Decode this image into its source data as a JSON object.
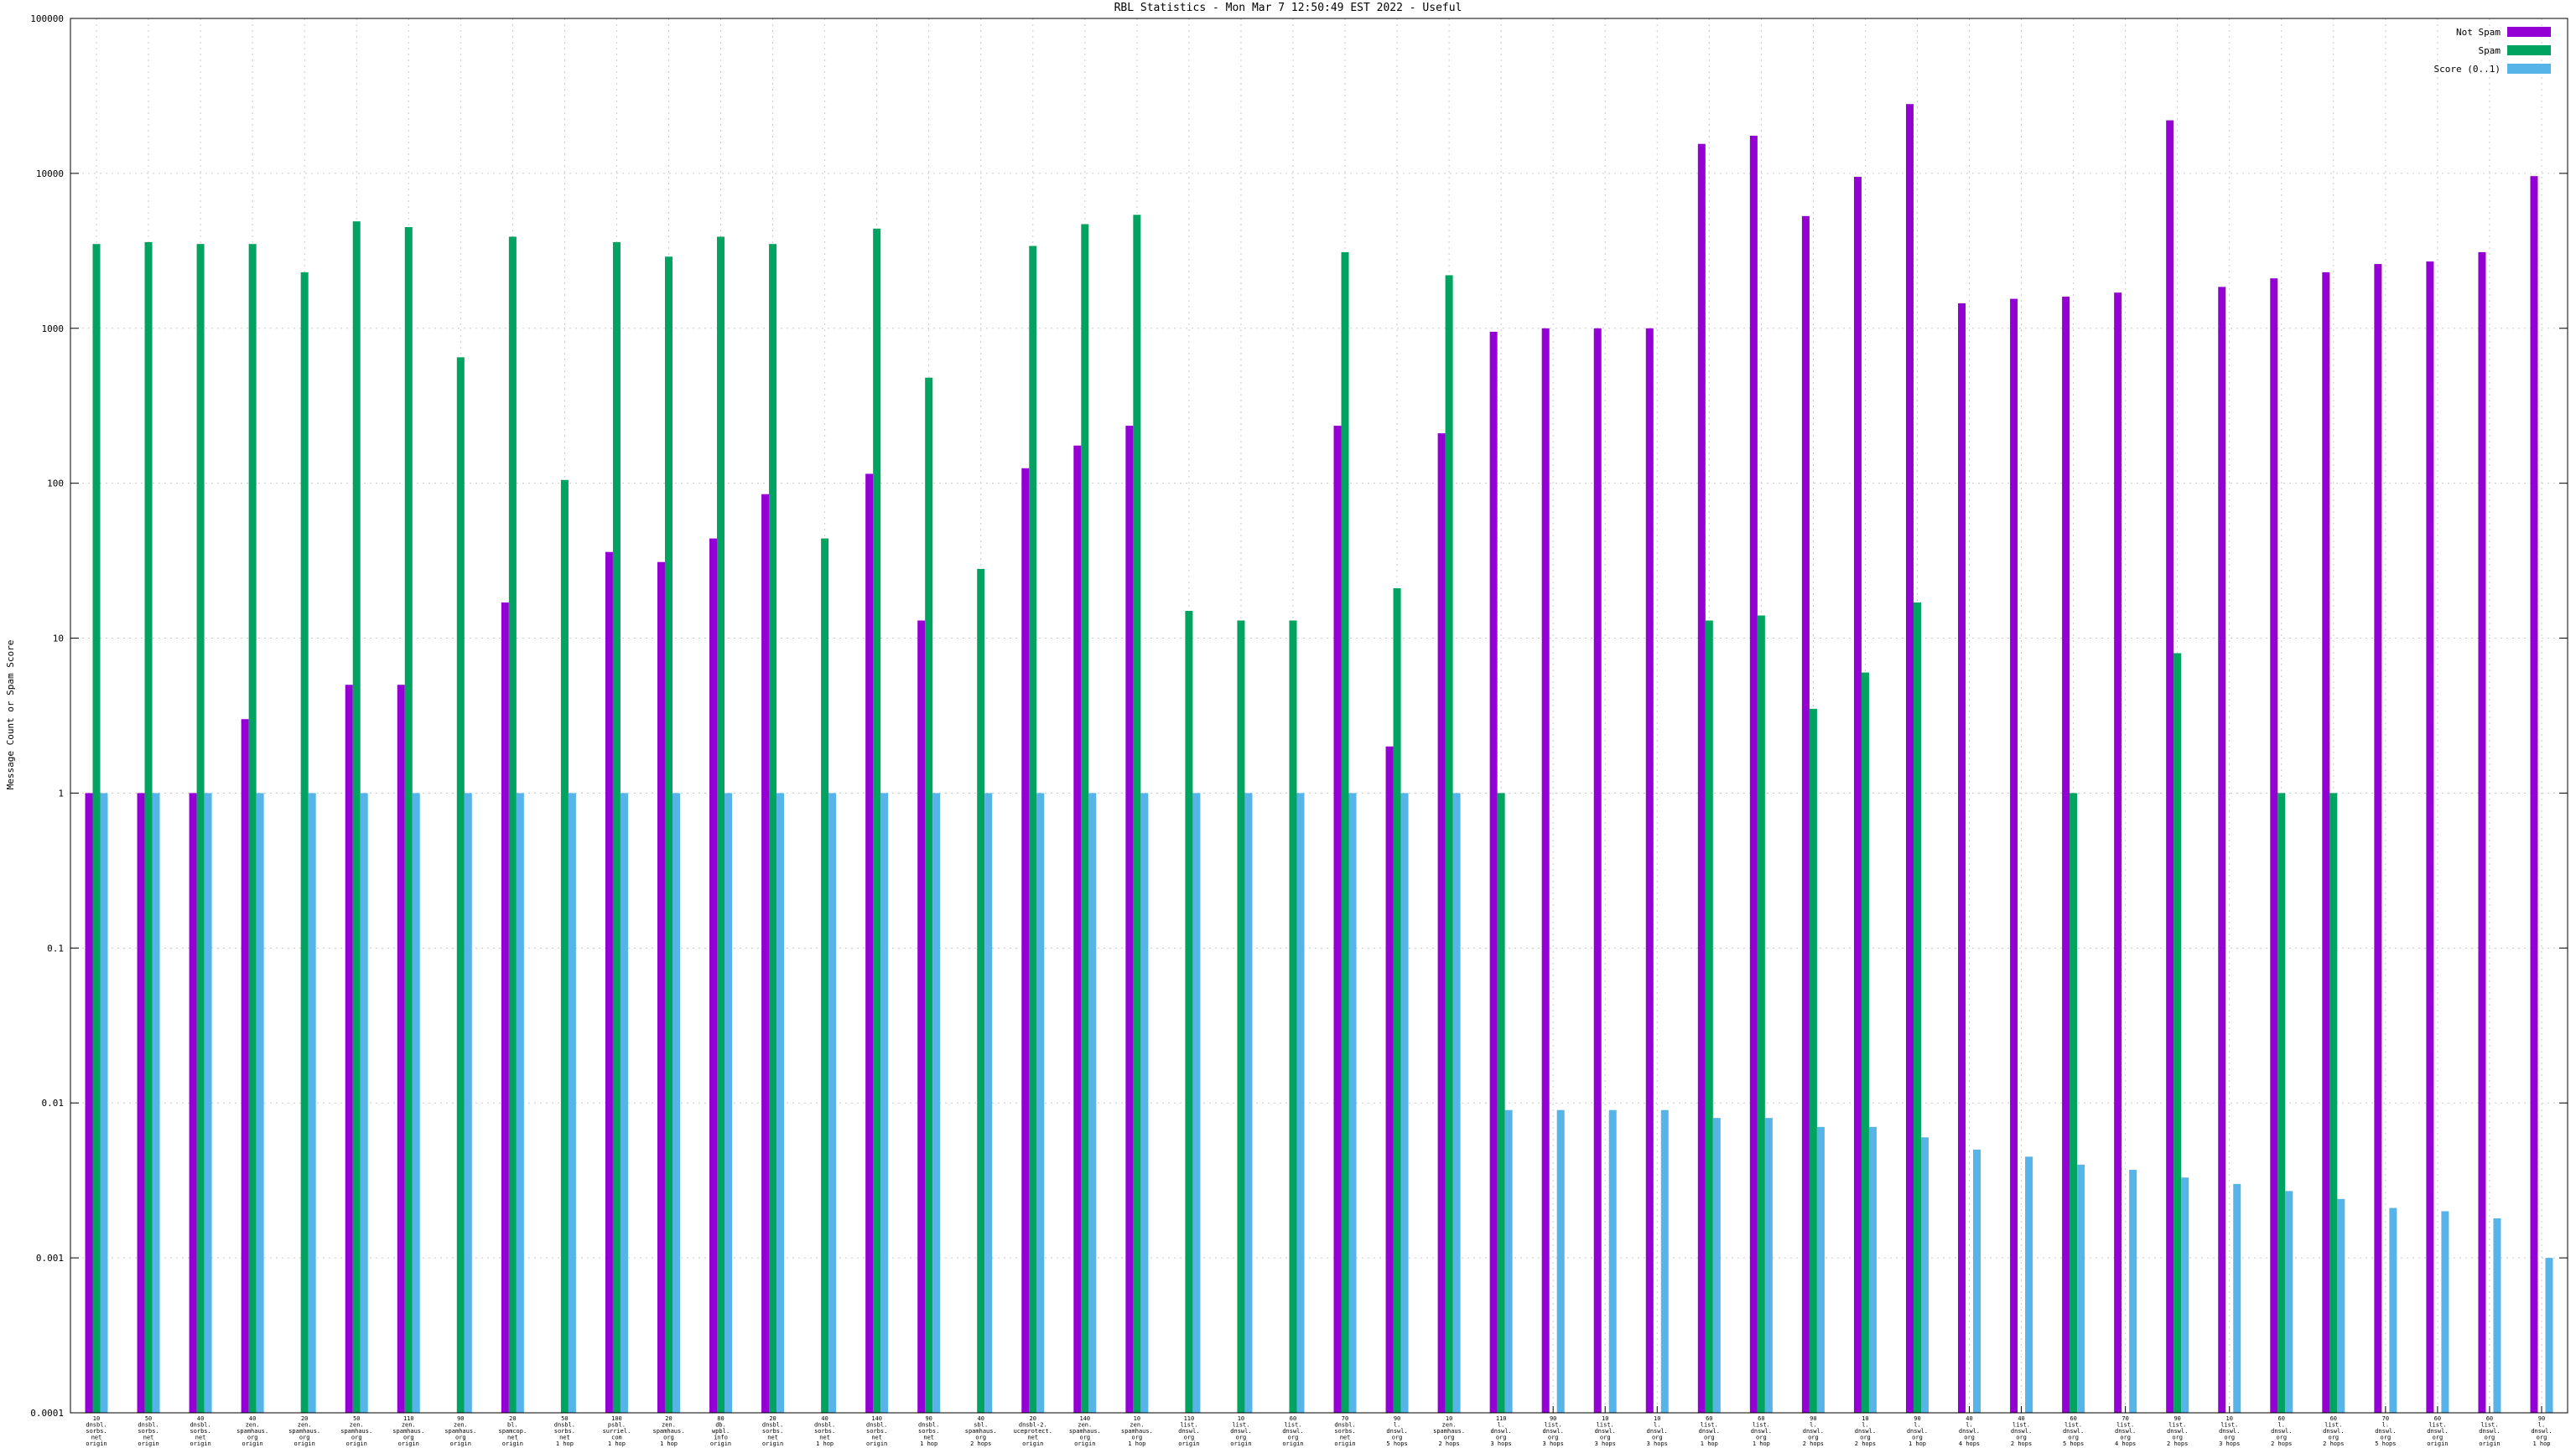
{
  "title": "RBL Statistics - Mon Mar  7 12:50:49 EST 2022 - Useful",
  "axes": {
    "ylabel": "Message Count or Spam Score",
    "ytick_labels": [
      "100000",
      "10000",
      "1000",
      "100",
      "10",
      "1",
      "0.1",
      "0.01",
      "0.001",
      "0.0001"
    ]
  },
  "chart_data": {
    "type": "bar",
    "log_y": true,
    "ylim": [
      0.0001,
      100000
    ],
    "grid": true,
    "legend_position": "top-right",
    "x_tick_labels": [
      [
        "10",
        "dnsbl.",
        "sorbs.",
        "net",
        "origin"
      ],
      [
        "50",
        "dnsbl.",
        "sorbs.",
        "net",
        "origin"
      ],
      [
        "40",
        "dnsbl.",
        "sorbs.",
        "net",
        "origin"
      ],
      [
        "40",
        "zen.",
        "spamhaus.",
        "org",
        "origin"
      ],
      [
        "20",
        "zen.",
        "spamhaus.",
        "org",
        "origin"
      ],
      [
        "50",
        "zen.",
        "spamhaus.",
        "org",
        "origin"
      ],
      [
        "110",
        "zen.",
        "spamhaus.",
        "org",
        "origin"
      ],
      [
        "90",
        "zen.",
        "spamhaus.",
        "org",
        "origin"
      ],
      [
        "20",
        "bl.",
        "spamcop.",
        "net",
        "origin"
      ],
      [
        "50",
        "dnsbl.",
        "sorbs.",
        "net",
        "1 hop"
      ],
      [
        "100",
        "psbl.",
        "surriel.",
        "com",
        "1 hop"
      ],
      [
        "20",
        "zen.",
        "spamhaus.",
        "org",
        "1 hop"
      ],
      [
        "80",
        "db.",
        "wpbl.",
        "info",
        "origin"
      ],
      [
        "20",
        "dnsbl.",
        "sorbs.",
        "net",
        "origin"
      ],
      [
        "40",
        "dnsbl.",
        "sorbs.",
        "net",
        "1 hop"
      ],
      [
        "140",
        "dnsbl.",
        "sorbs.",
        "net",
        "origin"
      ],
      [
        "90",
        "dnsbl.",
        "sorbs.",
        "net",
        "1 hop"
      ],
      [
        "40",
        "sbl.",
        "spamhaus.",
        "org",
        "2 hops"
      ],
      [
        "20",
        "dnsbl-2.",
        "uceprotect.",
        "net",
        "origin"
      ],
      [
        "140",
        "zen.",
        "spamhaus.",
        "org",
        "origin"
      ],
      [
        "10",
        "zen.",
        "spamhaus.",
        "org",
        "1 hop"
      ],
      [
        "110",
        "list.",
        "dnswl.",
        "org",
        "origin"
      ],
      [
        "10",
        "list.",
        "dnswl.",
        "org",
        "origin"
      ],
      [
        "60",
        "list.",
        "dnswl.",
        "org",
        "origin"
      ],
      [
        "70",
        "dnsbl.",
        "sorbs.",
        "net",
        "origin"
      ],
      [
        "90",
        "l.",
        "dnswl.",
        "org",
        "5 hops"
      ],
      [
        "10",
        "zen.",
        "spamhaus.",
        "org",
        "2 hops"
      ],
      [
        "110",
        "l.",
        "dnswl.",
        "org",
        "3 hops"
      ],
      [
        "90",
        "list.",
        "dnswl.",
        "org",
        "3 hops"
      ],
      [
        "10",
        "list.",
        "dnswl.",
        "org",
        "3 hops"
      ],
      [
        "10",
        "l.",
        "dnswl.",
        "org",
        "3 hops"
      ],
      [
        "60",
        "list.",
        "dnswl.",
        "org",
        "1 hop"
      ],
      [
        "60",
        "list.",
        "dnswl.",
        "org",
        "1 hop"
      ],
      [
        "90",
        "l.",
        "dnswl.",
        "org",
        "2 hops"
      ],
      [
        "10",
        "l.",
        "dnswl.",
        "org",
        "2 hops"
      ],
      [
        "90",
        "l.",
        "dnswl.",
        "org",
        "1 hop"
      ],
      [
        "40",
        "l.",
        "dnswl.",
        "org",
        "4 hops"
      ],
      [
        "40",
        "list.",
        "dnswl.",
        "org",
        "2 hops"
      ],
      [
        "60",
        "list.",
        "dnswl.",
        "org",
        "5 hops"
      ],
      [
        "70",
        "list.",
        "dnswl.",
        "org",
        "4 hops"
      ],
      [
        "90",
        "list.",
        "dnswl.",
        "org",
        "2 hops"
      ],
      [
        "10",
        "list.",
        "dnswl.",
        "org",
        "3 hops"
      ],
      [
        "60",
        "l.",
        "dnswl.",
        "org",
        "2 hops"
      ],
      [
        "60",
        "list.",
        "dnswl.",
        "org",
        "2 hops"
      ],
      [
        "70",
        "l.",
        "dnswl.",
        "org",
        "5 hops"
      ],
      [
        "60",
        "list.",
        "dnswl.",
        "org",
        "origin"
      ],
      [
        "60",
        "list.",
        "dnswl.",
        "org",
        "origin"
      ],
      [
        "90",
        "l.",
        "dnswl.",
        "org",
        "1 hop"
      ]
    ],
    "series": [
      {
        "name": "Not Spam",
        "color": "#9400d3",
        "values": [
          1,
          1,
          1,
          3,
          null,
          5,
          5,
          null,
          17,
          null,
          36,
          31,
          44,
          85,
          null,
          115,
          13,
          null,
          125,
          175,
          235,
          null,
          null,
          null,
          235,
          2,
          210,
          950,
          1000,
          1000,
          1000,
          15500,
          17500,
          5300,
          9500,
          28000,
          1450,
          1550,
          1600,
          1700,
          22000,
          1850,
          2100,
          2300,
          2600,
          2700,
          3100,
          9600
        ]
      },
      {
        "name": "Spam",
        "color": "#00a35f",
        "values": [
          3500,
          3600,
          3500,
          3500,
          2300,
          4900,
          4500,
          650,
          3900,
          105,
          3600,
          2900,
          3900,
          3500,
          44,
          4400,
          480,
          28,
          3400,
          4700,
          5400,
          15,
          13,
          13,
          3100,
          21,
          2200,
          1,
          null,
          null,
          null,
          13,
          14,
          3.5,
          6,
          17,
          null,
          null,
          1,
          null,
          8,
          null,
          1,
          1,
          null,
          null,
          null,
          null
        ]
      },
      {
        "name": "Score (0..1)",
        "color": "#56b4e9",
        "values": [
          1,
          1,
          1,
          1,
          1,
          1,
          1,
          1,
          1,
          1,
          1,
          1,
          1,
          1,
          1,
          1,
          1,
          1,
          1,
          1,
          1,
          1,
          1,
          1,
          1,
          1,
          1,
          0.009,
          0.009,
          0.009,
          0.009,
          0.008,
          0.008,
          0.007,
          0.007,
          0.006,
          0.005,
          0.0045,
          0.004,
          0.0037,
          0.0033,
          0.003,
          0.0027,
          0.0024,
          0.0021,
          0.002,
          0.0018,
          0.001
        ]
      }
    ]
  }
}
